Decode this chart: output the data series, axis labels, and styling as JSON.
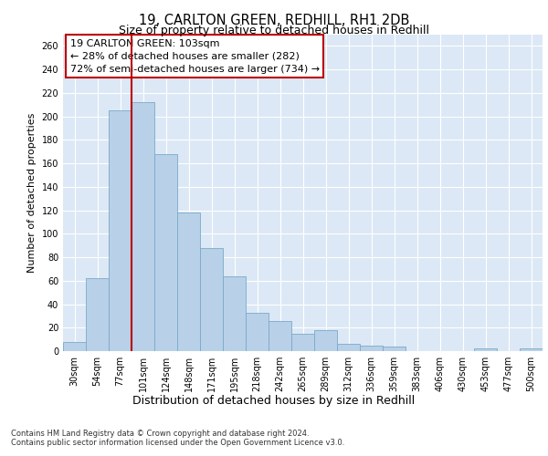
{
  "title1": "19, CARLTON GREEN, REDHILL, RH1 2DB",
  "title2": "Size of property relative to detached houses in Redhill",
  "xlabel": "Distribution of detached houses by size in Redhill",
  "ylabel": "Number of detached properties",
  "bar_labels": [
    "30sqm",
    "54sqm",
    "77sqm",
    "101sqm",
    "124sqm",
    "148sqm",
    "171sqm",
    "195sqm",
    "218sqm",
    "242sqm",
    "265sqm",
    "289sqm",
    "312sqm",
    "336sqm",
    "359sqm",
    "383sqm",
    "406sqm",
    "430sqm",
    "453sqm",
    "477sqm",
    "500sqm"
  ],
  "bar_values": [
    8,
    62,
    205,
    212,
    168,
    118,
    88,
    64,
    33,
    26,
    15,
    18,
    6,
    5,
    4,
    0,
    0,
    0,
    2,
    0,
    2
  ],
  "bar_color": "#b8d0e8",
  "bar_edge_color": "#7aaac8",
  "vline_x": 2.5,
  "vline_color": "#bb0000",
  "annotation_lines": [
    "19 CARLTON GREEN: 103sqm",
    "← 28% of detached houses are smaller (282)",
    "72% of semi-detached houses are larger (734) →"
  ],
  "annotation_box_color": "#ffffff",
  "annotation_box_edge": "#bb0000",
  "ylim": [
    0,
    270
  ],
  "yticks": [
    0,
    20,
    40,
    60,
    80,
    100,
    120,
    140,
    160,
    180,
    200,
    220,
    240,
    260
  ],
  "background_color": "#dce8f5",
  "footer_line1": "Contains HM Land Registry data © Crown copyright and database right 2024.",
  "footer_line2": "Contains public sector information licensed under the Open Government Licence v3.0."
}
